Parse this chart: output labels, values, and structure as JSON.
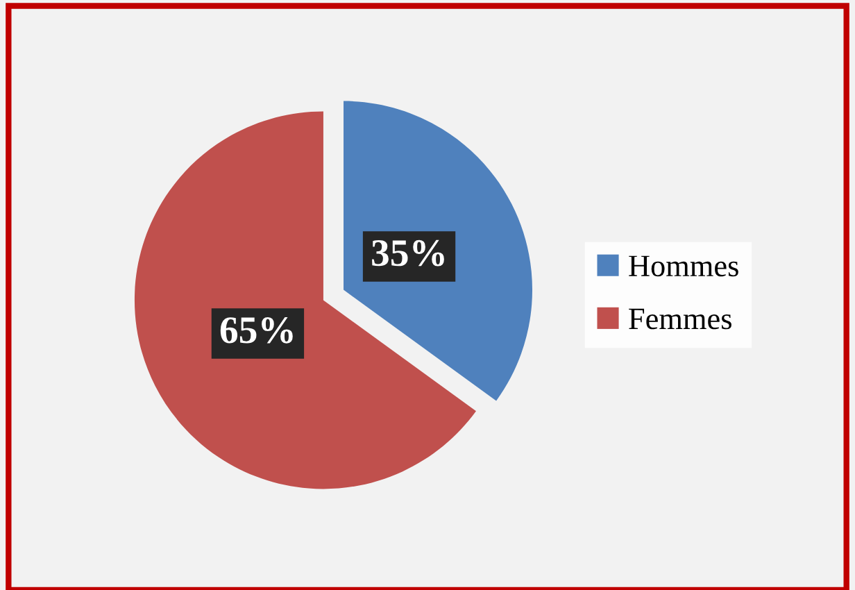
{
  "chart_data": {
    "type": "pie",
    "categories": [
      "Hommes",
      "Femmes"
    ],
    "values": [
      35,
      65
    ],
    "colors": [
      "#4f81bd",
      "#c0504d"
    ],
    "value_labels": [
      "35%",
      "65%"
    ],
    "legend": "right"
  }
}
